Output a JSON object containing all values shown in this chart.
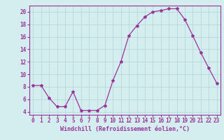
{
  "x": [
    0,
    1,
    2,
    3,
    4,
    5,
    6,
    7,
    8,
    9,
    10,
    11,
    12,
    13,
    14,
    15,
    16,
    17,
    18,
    19,
    20,
    21,
    22,
    23
  ],
  "y": [
    8.2,
    8.2,
    6.2,
    4.8,
    4.8,
    7.2,
    4.2,
    4.2,
    4.2,
    5.0,
    9.0,
    12.0,
    16.2,
    17.8,
    19.2,
    20.0,
    20.2,
    20.5,
    20.5,
    18.8,
    16.2,
    13.5,
    11.0,
    8.6
  ],
  "line_color": "#993399",
  "marker": "*",
  "marker_size": 3,
  "xlabel": "Windchill (Refroidissement éolien,°C)",
  "ylim": [
    3.5,
    21.0
  ],
  "xlim": [
    -0.5,
    23.5
  ],
  "yticks": [
    4,
    6,
    8,
    10,
    12,
    14,
    16,
    18,
    20
  ],
  "xticks": [
    0,
    1,
    2,
    3,
    4,
    5,
    6,
    7,
    8,
    9,
    10,
    11,
    12,
    13,
    14,
    15,
    16,
    17,
    18,
    19,
    20,
    21,
    22,
    23
  ],
  "bg_color": "#d4eef0",
  "grid_color": "#b8d8dc",
  "tick_color": "#993399",
  "label_color": "#993399",
  "label_fontsize": 6.0,
  "tick_fontsize": 5.5
}
